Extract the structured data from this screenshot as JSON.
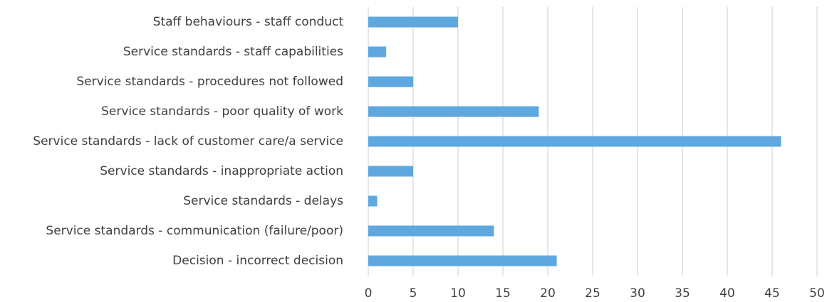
{
  "chart_data": {
    "type": "bar",
    "orientation": "horizontal",
    "categories": [
      "Staff behaviours - staff conduct",
      "Service standards - staff capabilities",
      "Service standards - procedures not followed",
      "Service standards - poor quality of work",
      "Service standards - lack of customer care/a service",
      "Service standards - inappropriate action",
      "Service standards - delays",
      "Service standards - communication (failure/poor)",
      "Decision - incorrect decision"
    ],
    "values": [
      10,
      2,
      5,
      19,
      46,
      5,
      1,
      14,
      21
    ],
    "color": "#5fa8df",
    "xlim": [
      0,
      50
    ],
    "xticks": [
      0,
      5,
      10,
      15,
      20,
      25,
      30,
      35,
      40,
      45,
      50
    ],
    "grid": true
  }
}
